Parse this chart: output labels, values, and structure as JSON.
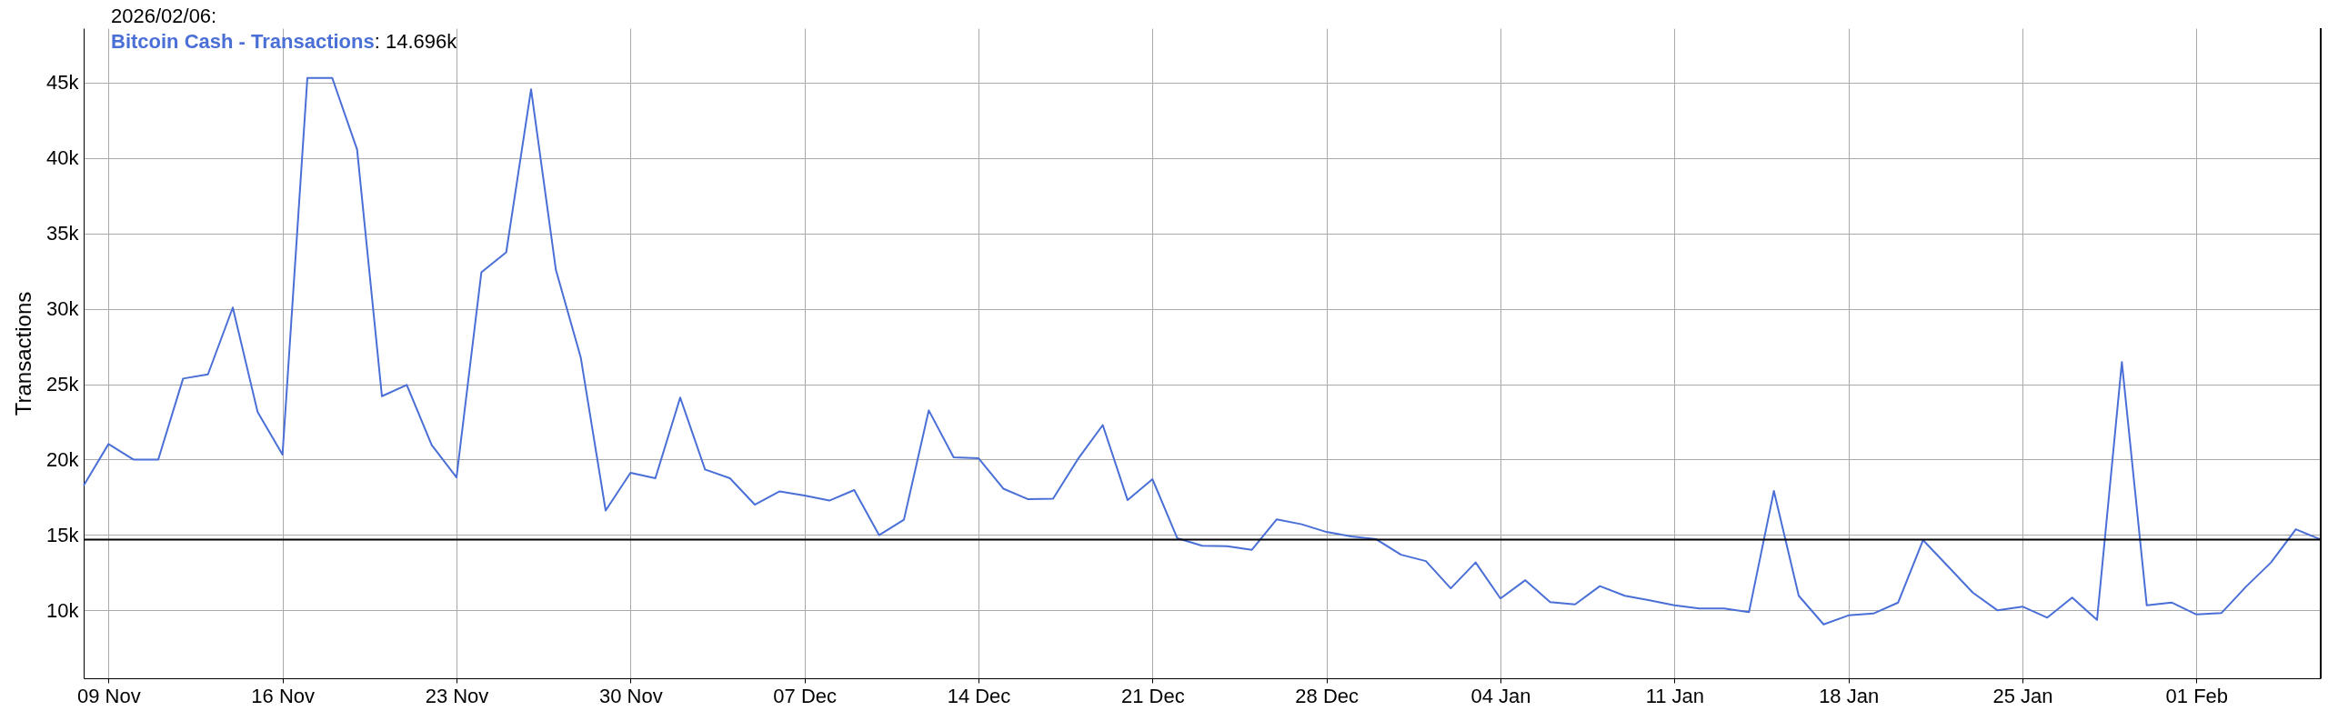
{
  "chart_data": {
    "type": "line",
    "ylabel": "Transactions",
    "x": [
      "2025-11-08",
      "2025-11-09",
      "2025-11-10",
      "2025-11-11",
      "2025-11-12",
      "2025-11-13",
      "2025-11-14",
      "2025-11-15",
      "2025-11-16",
      "2025-11-17",
      "2025-11-18",
      "2025-11-19",
      "2025-11-20",
      "2025-11-21",
      "2025-11-22",
      "2025-11-23",
      "2025-11-24",
      "2025-11-25",
      "2025-11-26",
      "2025-11-27",
      "2025-11-28",
      "2025-11-29",
      "2025-11-30",
      "2025-12-01",
      "2025-12-02",
      "2025-12-03",
      "2025-12-04",
      "2025-12-05",
      "2025-12-06",
      "2025-12-07",
      "2025-12-08",
      "2025-12-09",
      "2025-12-10",
      "2025-12-11",
      "2025-12-12",
      "2025-12-13",
      "2025-12-14",
      "2025-12-15",
      "2025-12-16",
      "2025-12-17",
      "2025-12-18",
      "2025-12-19",
      "2025-12-20",
      "2025-12-21",
      "2025-12-22",
      "2025-12-23",
      "2025-12-24",
      "2025-12-25",
      "2025-12-26",
      "2025-12-27",
      "2025-12-28",
      "2025-12-29",
      "2025-12-30",
      "2025-12-31",
      "2026-01-01",
      "2026-01-02",
      "2026-01-03",
      "2026-01-04",
      "2026-01-05",
      "2026-01-06",
      "2026-01-07",
      "2026-01-08",
      "2026-01-09",
      "2026-01-10",
      "2026-01-11",
      "2026-01-12",
      "2026-01-13",
      "2026-01-14",
      "2026-01-15",
      "2026-01-16",
      "2026-01-17",
      "2026-01-18",
      "2026-01-19",
      "2026-01-20",
      "2026-01-21",
      "2026-01-22",
      "2026-01-23",
      "2026-01-24",
      "2026-01-25",
      "2026-01-26",
      "2026-01-27",
      "2026-01-28",
      "2026-01-29",
      "2026-01-30",
      "2026-01-31",
      "2026-02-01",
      "2026-02-02",
      "2026-02-03",
      "2026-02-04",
      "2026-02-05",
      "2026-02-06"
    ],
    "series": [
      {
        "name": "Bitcoin Cash - Transactions",
        "color": "#4a6fd6",
        "values": [
          18280,
          21030,
          20000,
          20000,
          25370,
          25650,
          30080,
          23140,
          20330,
          45300,
          45300,
          40560,
          24200,
          24950,
          20970,
          18820,
          32410,
          33740,
          44550,
          32560,
          26760,
          16620,
          19120,
          18760,
          24110,
          19340,
          18760,
          17010,
          17890,
          17610,
          17280,
          17980,
          14990,
          16010,
          23260,
          20150,
          20090,
          18070,
          17370,
          17400,
          20030,
          22290,
          17310,
          18700,
          14780,
          14290,
          14260,
          14020,
          16040,
          15710,
          15200,
          14900,
          14720,
          13690,
          13270,
          11460,
          13180,
          10790,
          12000,
          10550,
          10400,
          11610,
          10970,
          10670,
          10340,
          10130,
          10130,
          9890,
          17920,
          10970,
          9070,
          9670,
          9790,
          10520,
          14660,
          12930,
          11180,
          10000,
          10250,
          9520,
          10850,
          9370,
          26460,
          10340,
          10520,
          9730,
          9820,
          11580,
          13180,
          15380,
          14696
        ]
      }
    ],
    "legend": "top left",
    "annotations": [
      "2026/02/06:",
      ": 14.696k"
    ],
    "xlim": [
      "2025-11-08",
      "2026-02-06"
    ],
    "xticks": [
      {
        "value": "2025-11-09",
        "label": "09 Nov"
      },
      {
        "value": "2025-11-16",
        "label": "16 Nov"
      },
      {
        "value": "2025-11-23",
        "label": "23 Nov"
      },
      {
        "value": "2025-11-30",
        "label": "30 Nov"
      },
      {
        "value": "2025-12-07",
        "label": "07 Dec"
      },
      {
        "value": "2025-12-14",
        "label": "14 Dec"
      },
      {
        "value": "2025-12-21",
        "label": "21 Dec"
      },
      {
        "value": "2025-12-28",
        "label": "28 Dec"
      },
      {
        "value": "2026-01-04",
        "label": "04 Jan"
      },
      {
        "value": "2026-01-11",
        "label": "11 Jan"
      },
      {
        "value": "2026-01-18",
        "label": "18 Jan"
      },
      {
        "value": "2026-01-25",
        "label": "25 Jan"
      },
      {
        "value": "2026-02-01",
        "label": "01 Feb"
      }
    ],
    "ylim": [
      5500,
      48600
    ],
    "yticks": [
      {
        "value": 10000,
        "label": "10k"
      },
      {
        "value": 15000,
        "label": "15k"
      },
      {
        "value": 20000,
        "label": "20k"
      },
      {
        "value": 25000,
        "label": "25k"
      },
      {
        "value": 30000,
        "label": "30k"
      },
      {
        "value": 35000,
        "label": "35k"
      },
      {
        "value": 40000,
        "label": "40k"
      },
      {
        "value": 45000,
        "label": "45k"
      }
    ],
    "grid": true,
    "ref_lines": [
      {
        "axis": "y",
        "value": 14696,
        "color": "#000000"
      },
      {
        "axis": "x",
        "value": "2026-02-06",
        "color": "#000000"
      }
    ]
  }
}
